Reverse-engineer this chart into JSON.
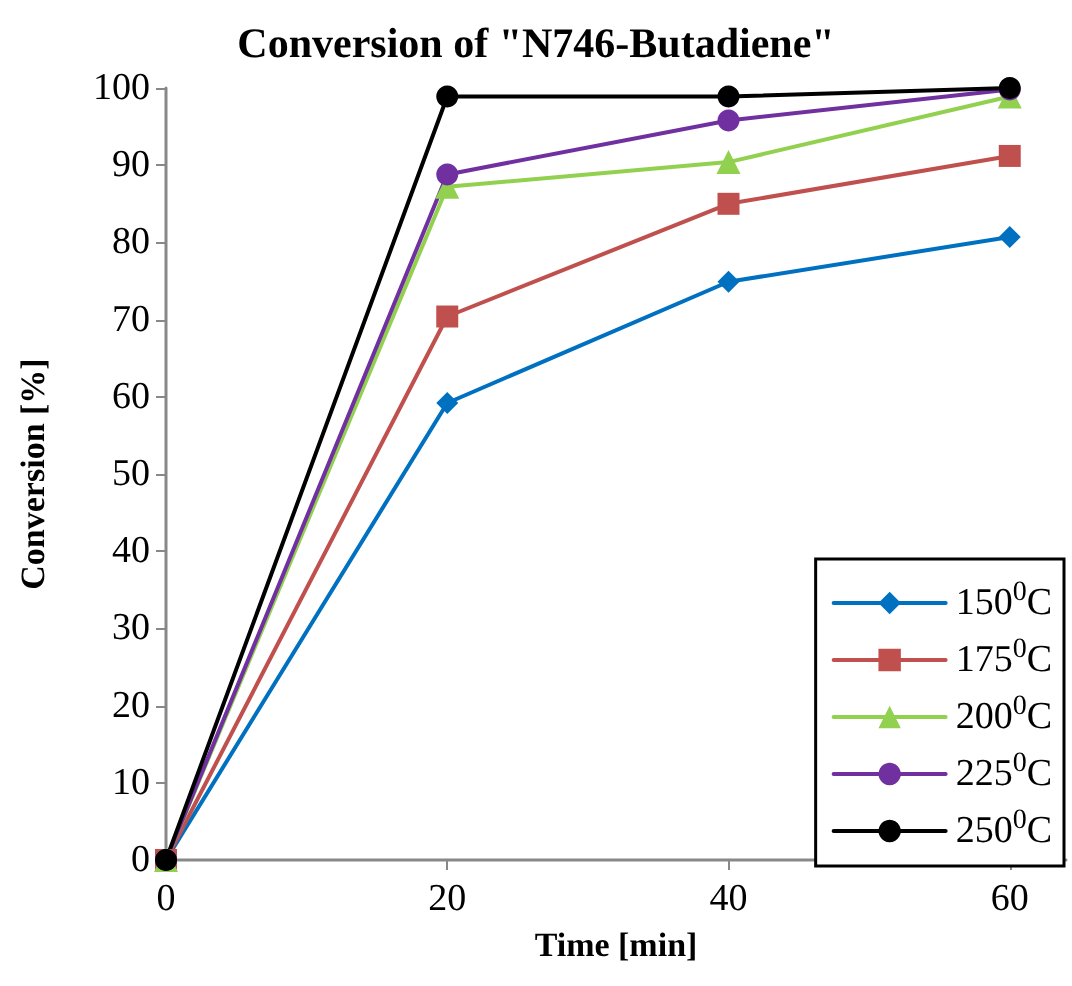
{
  "chart_data": {
    "type": "line",
    "title": "Conversion of \"N746-Butadiene\"",
    "xlabel": "Time [min]",
    "ylabel": "Conversion [%]",
    "x": [
      0,
      20,
      40,
      60
    ],
    "series": [
      {
        "name": "150$^{0}$C",
        "color": "#0070c0",
        "marker": "diamond",
        "values": [
          0,
          59.2,
          74.9,
          80.7
        ]
      },
      {
        "name": "175$^{0}$C",
        "color": "#c0504d",
        "marker": "square",
        "values": [
          0,
          70.4,
          85.0,
          91.2
        ]
      },
      {
        "name": "200$^{0}$C",
        "color": "#92d050",
        "marker": "triangle",
        "values": [
          0,
          87.2,
          90.4,
          98.9
        ]
      },
      {
        "name": "225$^{0}$C",
        "color": "#7030a0",
        "marker": "circle",
        "values": [
          0,
          88.8,
          95.8,
          99.8
        ]
      },
      {
        "name": "250$^{0}$C",
        "color": "#000000",
        "marker": "circle",
        "values": [
          0,
          98.9,
          98.9,
          100
        ]
      }
    ],
    "xlim": [
      0,
      64
    ],
    "xticks": [
      0,
      20,
      40,
      60
    ],
    "ylim": [
      0,
      100
    ],
    "yticks": [
      0,
      10,
      20,
      30,
      40,
      50,
      60,
      70,
      80,
      90,
      100
    ],
    "grid": false,
    "legend": "bottom right",
    "line_style": "solid"
  }
}
